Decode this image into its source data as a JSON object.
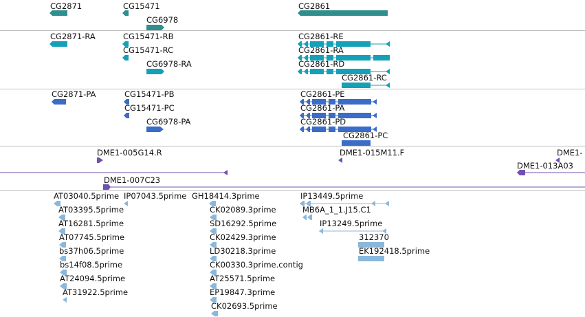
{
  "colors": {
    "gene": "#2f8f8f",
    "transcript": "#16a0b8",
    "protein": "#3a6cc8",
    "clone": "#7050b0",
    "est": "#8ab8dd"
  },
  "tracks": {
    "genes": [
      {
        "label": "CG2871"
      },
      {
        "label": "CG15471"
      },
      {
        "label": "CG6978"
      },
      {
        "label": "CG2861"
      }
    ],
    "transcripts": [
      {
        "label": "CG2871-RA"
      },
      {
        "label": "CG15471-RB"
      },
      {
        "label": "CG15471-RC"
      },
      {
        "label": "CG6978-RA"
      },
      {
        "label": "CG2861-RE"
      },
      {
        "label": "CG2861-RA"
      },
      {
        "label": "CG2861-RD"
      },
      {
        "label": "CG2861-RC"
      }
    ],
    "proteins": [
      {
        "label": "CG2871-PA"
      },
      {
        "label": "CG15471-PB"
      },
      {
        "label": "CG15471-PC"
      },
      {
        "label": "CG6978-PA"
      },
      {
        "label": "CG2861-PE"
      },
      {
        "label": "CG2861-PA"
      },
      {
        "label": "CG2861-PD"
      },
      {
        "label": "CG2861-PC"
      }
    ],
    "clones": [
      {
        "label": "DME1-005G14.R"
      },
      {
        "label": "DME1-015M11.F"
      },
      {
        "label": "DME1-"
      },
      {
        "label": "DME1-013A03"
      },
      {
        "label": "DME1-007C23"
      }
    ],
    "ests": [
      {
        "label": "AT03040.5prime"
      },
      {
        "label": "IP07043.5prime"
      },
      {
        "label": "GH18414.3prime"
      },
      {
        "label": "IP13449.5prime"
      },
      {
        "label": "AT03395.5prime"
      },
      {
        "label": "CK02089.3prime"
      },
      {
        "label": "MB6A_1_1.J15.C1"
      },
      {
        "label": "AT16281.5prime"
      },
      {
        "label": "SD16292.5prime"
      },
      {
        "label": "IP13249.5prime"
      },
      {
        "label": "AT07745.5prime"
      },
      {
        "label": "CK02429.3prime"
      },
      {
        "label": "312370"
      },
      {
        "label": "bs37h06.5prime"
      },
      {
        "label": "LD30218.3prime"
      },
      {
        "label": "EK192418.5prime"
      },
      {
        "label": "bs14f08.5prime"
      },
      {
        "label": "CK00330.3prime.contig"
      },
      {
        "label": "AT24094.5prime"
      },
      {
        "label": "AT25571.5prime"
      },
      {
        "label": "AT31922.5prime"
      },
      {
        "label": "EP19847.3prime"
      },
      {
        "label": "CK02693.5prime"
      }
    ]
  }
}
